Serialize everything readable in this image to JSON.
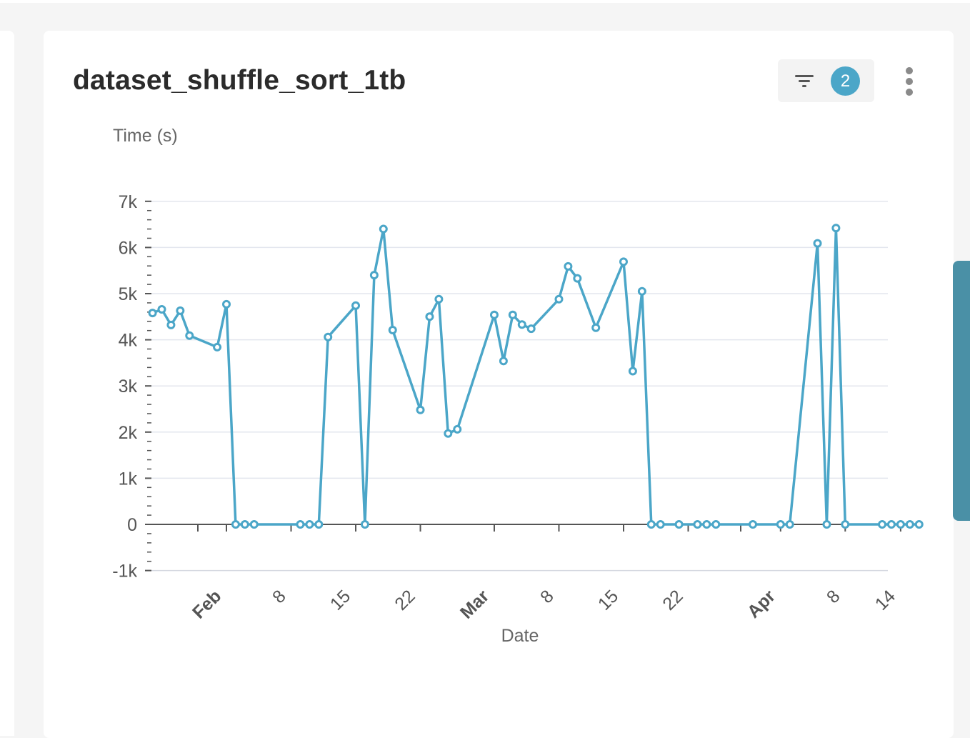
{
  "card": {
    "title": "dataset_shuffle_sort_1tb",
    "filter_count": "2"
  },
  "icons": {
    "filter": "filter-icon",
    "more": "more-vert-icon"
  },
  "colors": {
    "series": "#4ba6c8",
    "badge": "#4ba6c8",
    "side_tab": "#4a90a6"
  },
  "chart_data": {
    "type": "line",
    "title": "dataset_shuffle_sort_1tb",
    "xlabel": "Date",
    "ylabel": "Time (s)",
    "ylim": [
      -1000,
      7000
    ],
    "y_ticks": [
      "7k",
      "6k",
      "5k",
      "4k",
      "3k",
      "2k",
      "1k",
      "0",
      "-1k"
    ],
    "x_ticks": [
      {
        "date": "2024-02-01",
        "label": "Feb",
        "bold": true
      },
      {
        "date": "2024-02-08",
        "label": "8",
        "bold": false
      },
      {
        "date": "2024-02-15",
        "label": "15",
        "bold": false
      },
      {
        "date": "2024-02-22",
        "label": "22",
        "bold": false
      },
      {
        "date": "2024-03-01",
        "label": "Mar",
        "bold": true
      },
      {
        "date": "2024-03-08",
        "label": "8",
        "bold": false
      },
      {
        "date": "2024-03-15",
        "label": "15",
        "bold": false
      },
      {
        "date": "2024-03-22",
        "label": "22",
        "bold": false
      },
      {
        "date": "2024-04-01",
        "label": "Apr",
        "bold": true
      },
      {
        "date": "2024-04-08",
        "label": "8",
        "bold": false
      },
      {
        "date": "2024-04-14",
        "label": "14",
        "bold": false
      }
    ],
    "grid": true,
    "series": [
      {
        "points": [
          [
            "2024-01-24",
            4580
          ],
          [
            "2024-01-25",
            4660
          ],
          [
            "2024-01-26",
            4320
          ],
          [
            "2024-01-27",
            4630
          ],
          [
            "2024-01-28",
            4090
          ],
          [
            "2024-01-31",
            3840
          ],
          [
            "2024-02-01",
            4770
          ],
          [
            "2024-02-02",
            0
          ],
          [
            "2024-02-03",
            0
          ],
          [
            "2024-02-04",
            0
          ],
          [
            "2024-02-09",
            0
          ],
          [
            "2024-02-10",
            0
          ],
          [
            "2024-02-11",
            0
          ],
          [
            "2024-02-12",
            4060
          ],
          [
            "2024-02-15",
            4740
          ],
          [
            "2024-02-16",
            0
          ],
          [
            "2024-02-17",
            5400
          ],
          [
            "2024-02-18",
            6400
          ],
          [
            "2024-02-19",
            4210
          ],
          [
            "2024-02-22",
            2480
          ],
          [
            "2024-02-23",
            4500
          ],
          [
            "2024-02-24",
            4880
          ],
          [
            "2024-02-25",
            1970
          ],
          [
            "2024-02-26",
            2060
          ],
          [
            "2024-03-01",
            4540
          ],
          [
            "2024-03-02",
            3540
          ],
          [
            "2024-03-03",
            4540
          ],
          [
            "2024-03-04",
            4330
          ],
          [
            "2024-03-05",
            4240
          ],
          [
            "2024-03-08",
            4880
          ],
          [
            "2024-03-09",
            5590
          ],
          [
            "2024-03-10",
            5330
          ],
          [
            "2024-03-12",
            4260
          ],
          [
            "2024-03-15",
            5690
          ],
          [
            "2024-03-16",
            3320
          ],
          [
            "2024-03-17",
            5050
          ],
          [
            "2024-03-18",
            0
          ],
          [
            "2024-03-19",
            0
          ],
          [
            "2024-03-21",
            0
          ],
          [
            "2024-03-23",
            0
          ],
          [
            "2024-03-24",
            0
          ],
          [
            "2024-03-25",
            0
          ],
          [
            "2024-03-29",
            0
          ],
          [
            "2024-04-01",
            0
          ],
          [
            "2024-04-02",
            0
          ],
          [
            "2024-04-05",
            6090
          ],
          [
            "2024-04-06",
            0
          ],
          [
            "2024-04-07",
            6420
          ],
          [
            "2024-04-08",
            0
          ],
          [
            "2024-04-12",
            0
          ],
          [
            "2024-04-13",
            0
          ],
          [
            "2024-04-14",
            0
          ],
          [
            "2024-04-15",
            0
          ],
          [
            "2024-04-16",
            0
          ]
        ]
      }
    ]
  }
}
